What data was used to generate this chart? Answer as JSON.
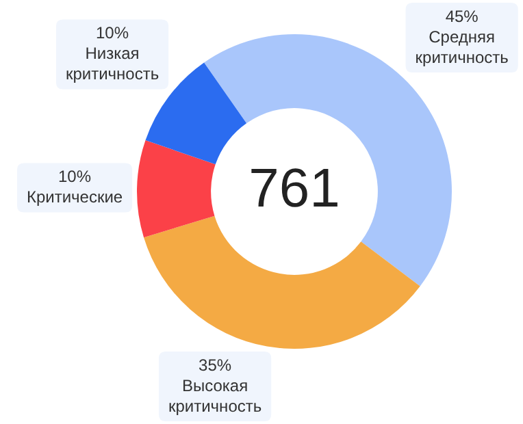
{
  "chart_data": {
    "type": "donut",
    "categories": [
      "Средняя критичность",
      "Высокая критичность",
      "Критические",
      "Низкая критичность"
    ],
    "values": [
      45,
      35,
      10,
      10
    ],
    "value_labels": [
      "45%",
      "35%",
      "10%",
      "10%"
    ],
    "colors": [
      "#a9c6fb",
      "#f4aa44",
      "#fb4148",
      "#2b6cf0"
    ],
    "annotations": [
      "761"
    ],
    "legend": false
  }
}
